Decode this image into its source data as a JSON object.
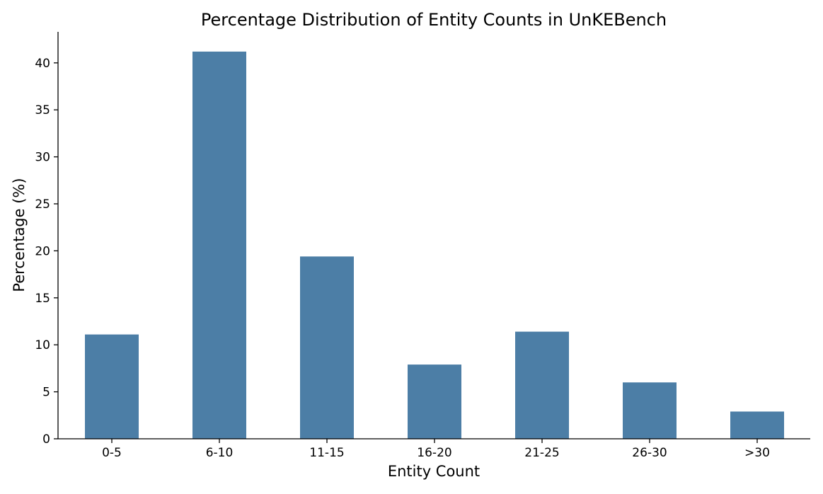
{
  "chart_data": {
    "type": "bar",
    "title": "Percentage Distribution of Entity Counts in UnKEBench",
    "xlabel": "Entity Count",
    "ylabel": "Percentage (%)",
    "categories": [
      "0-5",
      "6-10",
      "11-15",
      "16-20",
      "21-25",
      "26-30",
      ">30"
    ],
    "values": [
      11.1,
      41.2,
      19.4,
      7.9,
      11.4,
      6.0,
      2.9
    ],
    "ylim": [
      0,
      43.3
    ],
    "yticks": [
      "0",
      "5",
      "10",
      "15",
      "20",
      "25",
      "30",
      "35",
      "40"
    ],
    "grid": false,
    "legend": "none",
    "bar_color": "#4c7ea6"
  }
}
